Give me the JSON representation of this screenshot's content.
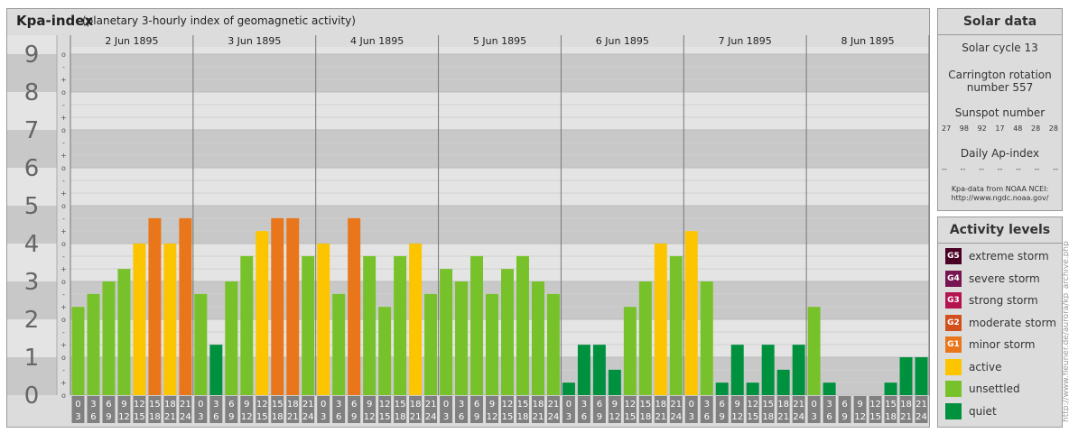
{
  "title": "Kpa-index",
  "subtitle": "(planetary 3-hourly index of geomagnetic activity)",
  "chart_data": {
    "type": "bar",
    "y_ticks": [
      "0",
      "1",
      "2",
      "3",
      "4",
      "5",
      "6",
      "7",
      "8",
      "9"
    ],
    "y_thirds": [
      "-",
      "o",
      "+"
    ],
    "ylim": [
      0,
      9.33
    ],
    "days": [
      "2 Jun 1895",
      "3 Jun 1895",
      "4 Jun 1895",
      "5 Jun 1895",
      "6 Jun 1895",
      "7 Jun 1895",
      "8 Jun 1895"
    ],
    "interval_start": [
      "0",
      "3",
      "6",
      "9",
      "12",
      "15",
      "18",
      "21"
    ],
    "interval_end": [
      "3",
      "6",
      "9",
      "12",
      "15",
      "18",
      "21",
      "24"
    ],
    "values": [
      [
        2.33,
        2.67,
        3.0,
        3.33,
        4.0,
        4.67,
        4.0,
        4.67
      ],
      [
        2.67,
        1.33,
        3.0,
        3.67,
        4.33,
        4.67,
        4.67,
        3.67
      ],
      [
        4.0,
        2.67,
        4.67,
        3.67,
        2.33,
        3.67,
        4.0,
        2.67
      ],
      [
        3.33,
        3.0,
        3.67,
        2.67,
        3.33,
        3.67,
        3.0,
        2.67
      ],
      [
        0.33,
        1.33,
        1.33,
        0.67,
        2.33,
        3.0,
        4.0,
        3.67
      ],
      [
        4.33,
        3.0,
        0.33,
        1.33,
        0.33,
        1.33,
        0.67,
        1.33
      ],
      [
        2.33,
        0.33,
        0.0,
        0.0,
        0.0,
        0.33,
        1.0,
        1.0
      ]
    ]
  },
  "colors": {
    "quiet": "#00913f",
    "unsettled": "#77c22a",
    "active": "#fcc500",
    "G1": "#e9761a",
    "G2": "#d34f1c",
    "G3": "#b5134f",
    "G4": "#771553",
    "G5": "#4a0024"
  },
  "solar": {
    "title": "Solar data",
    "cycle": "Solar cycle 13",
    "carrington_line1": "Carrington rotation",
    "carrington_line2": "number 557",
    "sunspot_title": "Sunspot number",
    "sunspot_values": [
      "27",
      "98",
      "92",
      "17",
      "48",
      "28",
      "28"
    ],
    "ap_title": "Daily Ap-index",
    "ap_values": [
      "--",
      "--",
      "--",
      "--",
      "--",
      "--",
      "--"
    ],
    "source_line1": "Kpa-data from NOAA NCEI:",
    "source_line2": "http://www.ngdc.noaa.gov/"
  },
  "activity": {
    "title": "Activity levels",
    "items": [
      {
        "code": "G5",
        "label": "extreme storm",
        "color": "#4a0024"
      },
      {
        "code": "G4",
        "label": "severe storm",
        "color": "#771553"
      },
      {
        "code": "G3",
        "label": "strong storm",
        "color": "#b5134f"
      },
      {
        "code": "G2",
        "label": "moderate storm",
        "color": "#d34f1c"
      },
      {
        "code": "G1",
        "label": "minor storm",
        "color": "#e9761a"
      },
      {
        "code": "",
        "label": "active",
        "color": "#fcc500"
      },
      {
        "code": "",
        "label": "unsettled",
        "color": "#77c22a"
      },
      {
        "code": "",
        "label": "quiet",
        "color": "#00913f"
      }
    ]
  },
  "credit": "http://www.fleuner.de/aurora/kp_archive.php"
}
